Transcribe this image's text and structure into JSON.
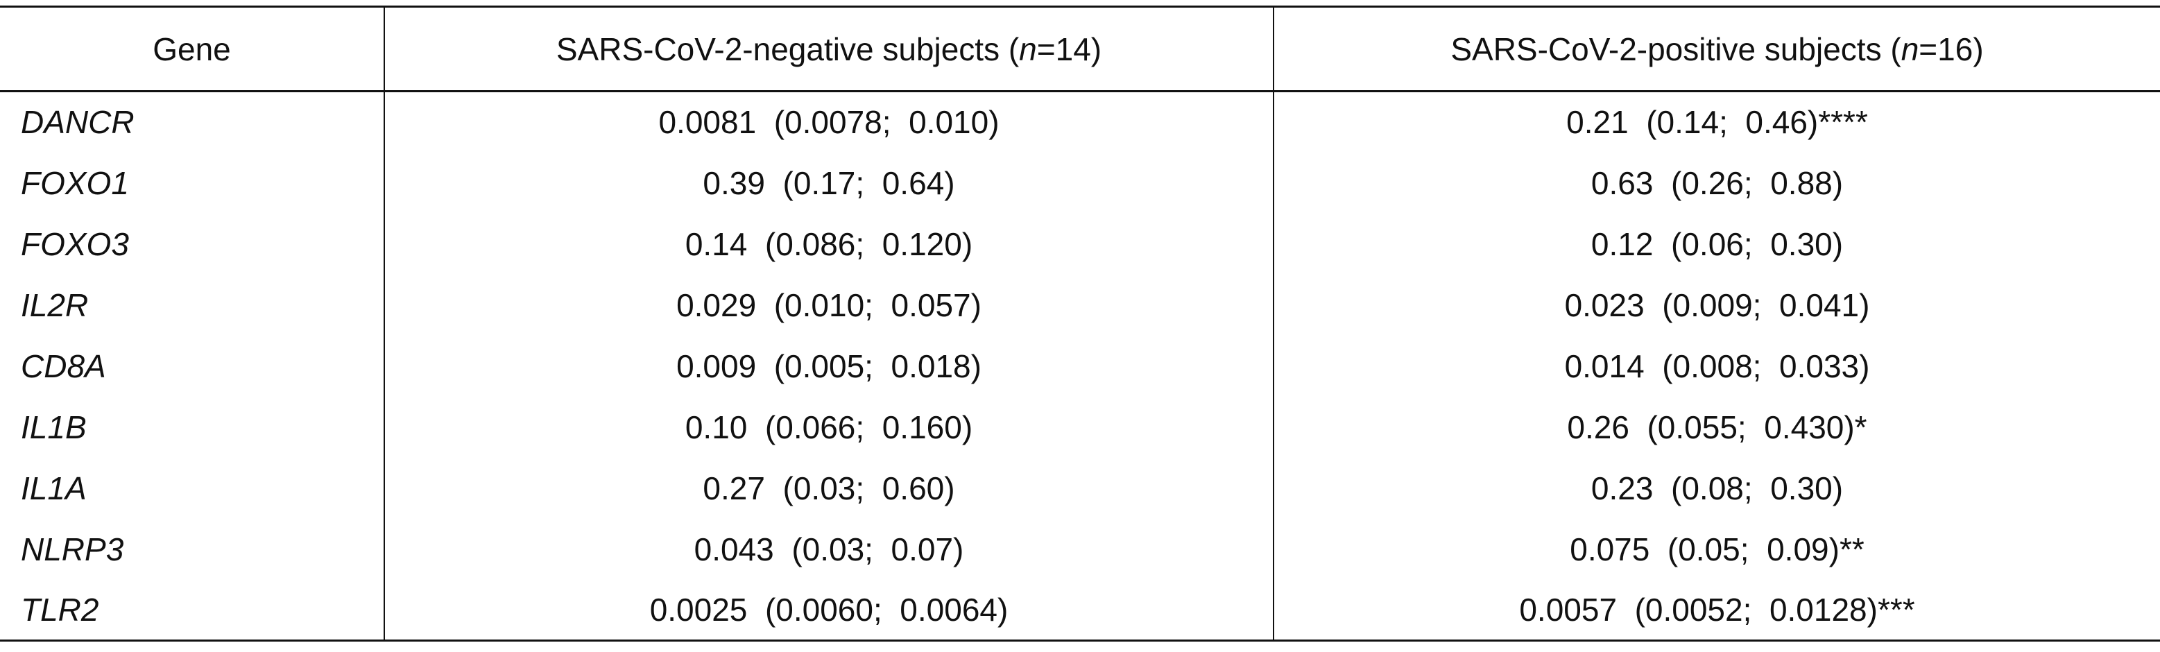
{
  "table": {
    "headers": {
      "gene": "Gene",
      "negative_prefix": "SARS-CoV-2-negative  subjects  (",
      "negative_n_symbol": "n",
      "negative_n_value": "=14)",
      "positive_prefix": "SARS-CoV-2-positive  subjects  (",
      "positive_n_symbol": "n",
      "positive_n_value": "=16)"
    },
    "rows": [
      {
        "gene": "DANCR",
        "negative": "0.0081  (0.0078;  0.010)",
        "positive": "0.21  (0.14;  0.46)****"
      },
      {
        "gene": "FOXO1",
        "negative": "0.39  (0.17;  0.64)",
        "positive": "0.63  (0.26;  0.88)"
      },
      {
        "gene": "FOXO3",
        "negative": "0.14  (0.086;  0.120)",
        "positive": "0.12  (0.06;  0.30)"
      },
      {
        "gene": "IL2R",
        "negative": "0.029  (0.010;  0.057)",
        "positive": "0.023  (0.009;  0.041)"
      },
      {
        "gene": "CD8A",
        "negative": "0.009  (0.005;  0.018)",
        "positive": "0.014  (0.008;  0.033)"
      },
      {
        "gene": "IL1B",
        "negative": "0.10  (0.066;  0.160)",
        "positive": "0.26  (0.055;  0.430)*"
      },
      {
        "gene": "IL1A",
        "negative": "0.27  (0.03;  0.60)",
        "positive": "0.23  (0.08;  0.30)"
      },
      {
        "gene": "NLRP3",
        "negative": "0.043  (0.03;  0.07)",
        "positive": "0.075  (0.05;  0.09)**"
      },
      {
        "gene": "TLR2",
        "negative": "0.0025  (0.0060;  0.0064)",
        "positive": "0.0057  (0.0052;  0.0128)***"
      }
    ]
  }
}
